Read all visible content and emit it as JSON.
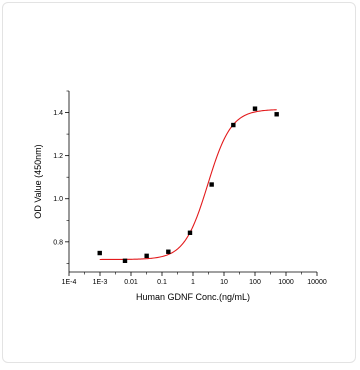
{
  "chart_data": {
    "type": "scatter",
    "xscale": "log",
    "xlabel": "Human GDNF Conc.(ng/mL)",
    "ylabel": "OD Value (450nm)",
    "xlim": [
      0.0001,
      10000
    ],
    "ylim": [
      0.66,
      1.5
    ],
    "x_ticks": [
      0.0001,
      0.001,
      0.01,
      0.1,
      1,
      10,
      100,
      1000,
      10000
    ],
    "x_tick_labels": [
      "1E-4",
      "1E-3",
      "0.01",
      "0.1",
      "1",
      "10",
      "100",
      "1000",
      "10000"
    ],
    "y_ticks": [
      0.8,
      1.0,
      1.2,
      1.4
    ],
    "y_tick_labels": [
      "0.8",
      "1.0",
      "1.2",
      "1.4"
    ],
    "grid": false,
    "legend": "none",
    "series": [
      {
        "kind": "points",
        "marker": "square",
        "color": "#000000",
        "x": [
          0.00098,
          0.0064,
          0.032,
          0.16,
          0.8,
          4,
          20,
          100,
          500
        ],
        "y": [
          0.748,
          0.712,
          0.735,
          0.754,
          0.842,
          1.066,
          1.342,
          1.418,
          1.392
        ]
      },
      {
        "kind": "fit-curve",
        "color": "#e31a1c",
        "bottom": 0.718,
        "top": 1.415,
        "ec50": 3.0,
        "hill": 1.15,
        "x_range": [
          0.00098,
          500
        ]
      }
    ]
  }
}
